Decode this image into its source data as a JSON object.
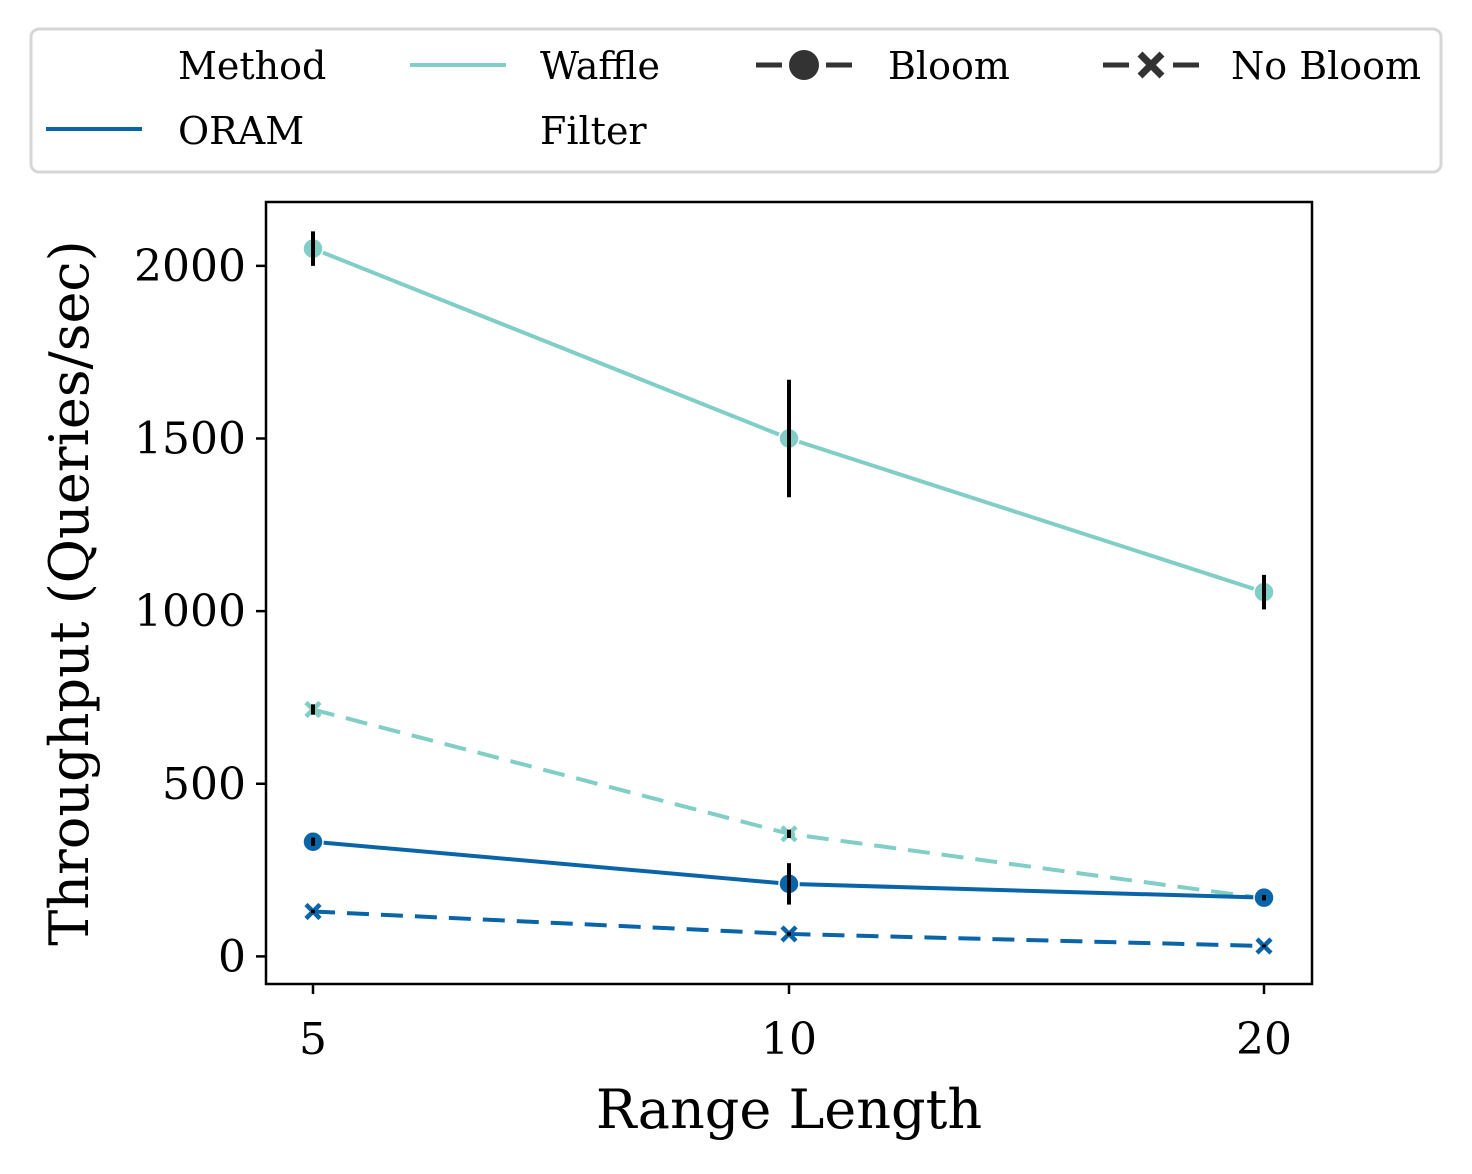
{
  "colors": {
    "oram": "#0a64a8",
    "waffle": "#80cec6",
    "legend_gray": "#333333",
    "errorbar": "#000000"
  },
  "legend": {
    "title": "Method",
    "methods": [
      {
        "label": "ORAM",
        "color": "#0a64a8"
      },
      {
        "label_lines": [
          "Waffle",
          "Filter"
        ],
        "color": "#80cec6"
      }
    ],
    "styles": [
      {
        "label": "Bloom",
        "marker": "circle",
        "dash": false
      },
      {
        "label": "No Bloom",
        "marker": "x",
        "dash": true
      }
    ]
  },
  "chart_data": {
    "type": "line",
    "xlabel": "Range Length",
    "ylabel": "Throughput (Queries/sec)",
    "x": [
      5,
      10,
      20
    ],
    "x_ticks": [
      "5",
      "10",
      "20"
    ],
    "y_ticks": [
      0,
      500,
      1000,
      1500,
      2000
    ],
    "ylim": [
      -80,
      2185
    ],
    "grid": false,
    "legend_position": "top, above plot",
    "series": [
      {
        "name": "Waffle Filter - Bloom",
        "method": "Waffle Filter",
        "style": "Bloom",
        "color": "#80cec6",
        "dashed": false,
        "marker": "circle",
        "values": [
          2050,
          1500,
          1055
        ],
        "err": [
          50,
          170,
          50
        ]
      },
      {
        "name": "Waffle Filter - No Bloom",
        "method": "Waffle Filter",
        "style": "No Bloom",
        "color": "#80cec6",
        "dashed": true,
        "marker": "x",
        "values": [
          715,
          355,
          168
        ],
        "err": [
          15,
          12,
          10
        ]
      },
      {
        "name": "ORAM - Bloom",
        "method": "ORAM",
        "style": "Bloom",
        "color": "#0a64a8",
        "dashed": false,
        "marker": "circle",
        "values": [
          332,
          210,
          170
        ],
        "err": [
          12,
          60,
          8
        ]
      },
      {
        "name": "ORAM - No Bloom",
        "method": "ORAM",
        "style": "No Bloom",
        "color": "#0a64a8",
        "dashed": true,
        "marker": "x",
        "values": [
          130,
          65,
          30
        ],
        "err": [
          5,
          5,
          4
        ]
      }
    ]
  }
}
